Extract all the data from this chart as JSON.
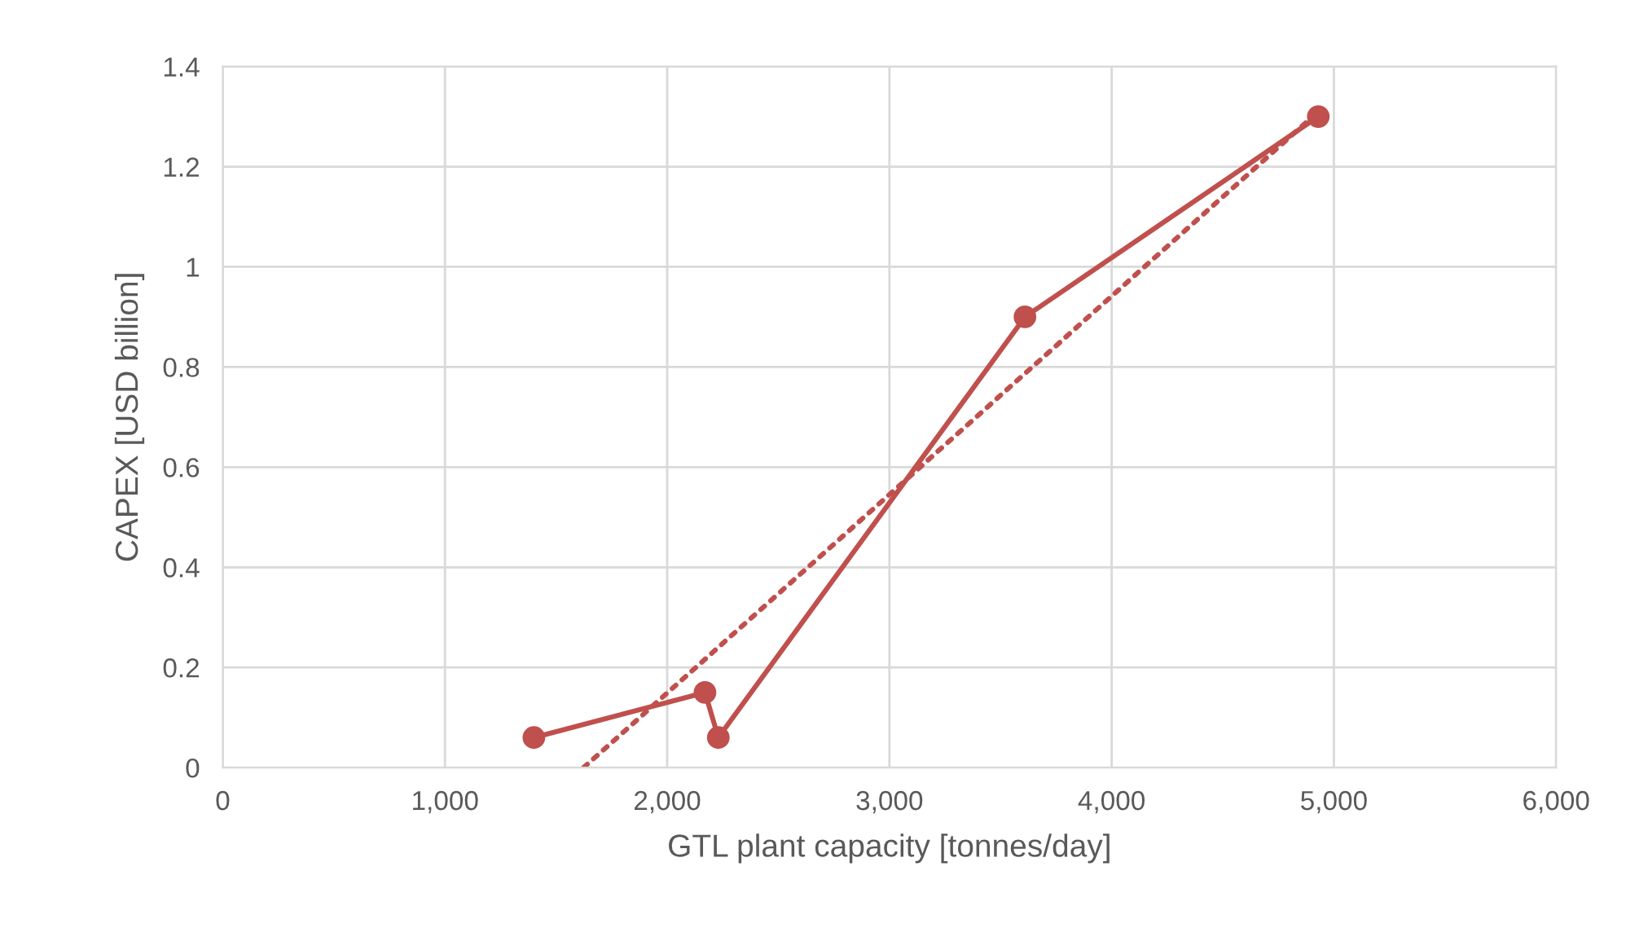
{
  "chart_data": {
    "type": "line",
    "xlabel": "GTL plant capacity [tonnes/day]",
    "ylabel": "CAPEX [USD billion]",
    "series": [
      {
        "color": "#c0504d",
        "x": [
          1400,
          2170,
          2230,
          3610,
          4930
        ],
        "values": [
          0.06,
          0.15,
          0.06,
          0.9,
          1.3
        ],
        "marker": "circle",
        "line_style": "solid"
      },
      {
        "color": "#c0504d",
        "x": [
          1624,
          4930
        ],
        "values": [
          0,
          1.31
        ],
        "marker": "none",
        "line_style": "dotted"
      }
    ],
    "xlim": [
      0,
      6000
    ],
    "xticks": [
      {
        "value": 0,
        "label": "0"
      },
      {
        "value": 1000,
        "label": "1,000"
      },
      {
        "value": 2000,
        "label": "2,000"
      },
      {
        "value": 3000,
        "label": "3,000"
      },
      {
        "value": 4000,
        "label": "4,000"
      },
      {
        "value": 5000,
        "label": "5,000"
      },
      {
        "value": 6000,
        "label": "6,000"
      }
    ],
    "ylim": [
      0,
      1.4
    ],
    "yticks": [
      0,
      0.2,
      0.4,
      0.6,
      0.8,
      1,
      1.2,
      1.4
    ],
    "grid": true,
    "legend": false
  }
}
